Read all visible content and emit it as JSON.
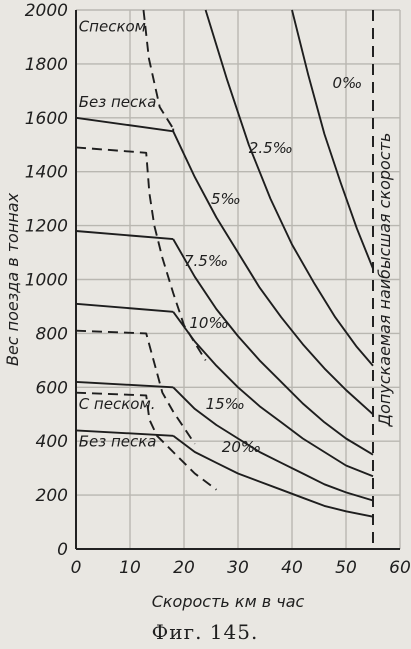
{
  "caption": "Фиг. 145.",
  "chart_data": {
    "type": "line",
    "title": "",
    "xlabel": "Скорость км в час",
    "ylabel": "Вес поезда в тоннах",
    "xlim": [
      0,
      60
    ],
    "ylim": [
      0,
      2000
    ],
    "xticks": [
      "0",
      "10",
      "20",
      "30",
      "40",
      "50",
      "60"
    ],
    "yticks": [
      "0",
      "200",
      "400",
      "600",
      "800",
      "1000",
      "1200",
      "1400",
      "1600",
      "1800",
      "2000"
    ],
    "grid": true,
    "max_speed": 55,
    "max_speed_label": "Допускаемая наибысшая скорость",
    "series": [
      {
        "name": "0‰",
        "style": "solid",
        "x": [
          40,
          43,
          46,
          49,
          52,
          55
        ],
        "y": [
          2000,
          1760,
          1540,
          1360,
          1190,
          1040
        ]
      },
      {
        "name": "2.5‰",
        "style": "solid",
        "x": [
          24,
          28,
          32,
          36,
          40,
          44,
          48,
          52,
          55
        ],
        "y": [
          2000,
          1740,
          1500,
          1300,
          1130,
          990,
          860,
          750,
          680
        ]
      },
      {
        "name": "5‰",
        "style": "solid",
        "x": [
          18,
          18,
          22,
          26,
          30,
          34,
          38,
          42,
          46,
          50,
          55
        ],
        "y": [
          1560,
          1550,
          1380,
          1230,
          1100,
          970,
          860,
          760,
          670,
          590,
          500
        ]
      },
      {
        "name": "7.5‰",
        "style": "solid",
        "x": [
          18,
          22,
          26,
          30,
          34,
          38,
          42,
          46,
          50,
          55
        ],
        "y": [
          1150,
          1010,
          890,
          790,
          700,
          620,
          540,
          470,
          410,
          350
        ]
      },
      {
        "name": "10‰",
        "style": "solid",
        "x": [
          18,
          22,
          26,
          30,
          34,
          38,
          42,
          46,
          50,
          55
        ],
        "y": [
          880,
          770,
          680,
          600,
          530,
          470,
          410,
          360,
          310,
          270
        ]
      },
      {
        "name": "15‰",
        "style": "solid",
        "x": [
          18,
          22,
          26,
          30,
          34,
          38,
          42,
          46,
          50,
          55
        ],
        "y": [
          600,
          520,
          460,
          410,
          360,
          320,
          280,
          240,
          210,
          180
        ]
      },
      {
        "name": "20‰",
        "style": "solid",
        "x": [
          18,
          22,
          26,
          30,
          34,
          38,
          42,
          46,
          50,
          55
        ],
        "y": [
          420,
          360,
          320,
          280,
          250,
          220,
          190,
          160,
          140,
          120
        ]
      },
      {
        "name": "Без песка",
        "style": "solid",
        "x": [
          0,
          18
        ],
        "y": [
          1600,
          1550
        ]
      },
      {
        "name": "",
        "style": "solid",
        "x": [
          0,
          18
        ],
        "y": [
          1180,
          1150
        ]
      },
      {
        "name": "",
        "style": "solid",
        "x": [
          0,
          18
        ],
        "y": [
          910,
          880
        ]
      },
      {
        "name": "",
        "style": "solid",
        "x": [
          0,
          18
        ],
        "y": [
          620,
          600
        ]
      },
      {
        "name": "Без песка",
        "style": "solid",
        "x": [
          0,
          18
        ],
        "y": [
          440,
          420
        ]
      },
      {
        "name": "Спеском",
        "style": "dashed",
        "x": [
          0,
          13,
          13.6,
          14.5,
          16,
          18,
          20,
          24
        ],
        "y": [
          1490,
          1470,
          1320,
          1200,
          1080,
          950,
          830,
          700
        ]
      },
      {
        "name": "С песком.",
        "style": "dashed",
        "x": [
          0,
          13,
          13.6,
          15,
          18,
          22,
          26
        ],
        "y": [
          580,
          570,
          480,
          420,
          360,
          280,
          220
        ]
      },
      {
        "name": "",
        "style": "dashed",
        "x": [
          0,
          13,
          14.5,
          16,
          18,
          22
        ],
        "y": [
          810,
          800,
          690,
          580,
          510,
          390
        ]
      },
      {
        "name": "",
        "style": "dashed",
        "x": [
          12.5,
          13.5,
          15.5,
          18
        ],
        "y": [
          2000,
          1820,
          1640,
          1560
        ]
      }
    ],
    "annotations": [
      {
        "text": "Спеском",
        "x": 0.5,
        "y": 1920
      },
      {
        "text": "Без песка",
        "x": 0.5,
        "y": 1640
      },
      {
        "text": "0‰",
        "x": 47.5,
        "y": 1710
      },
      {
        "text": "2.5‰",
        "x": 32,
        "y": 1470
      },
      {
        "text": "5‰",
        "x": 25,
        "y": 1280
      },
      {
        "text": "7.5‰",
        "x": 20,
        "y": 1050
      },
      {
        "text": "10‰",
        "x": 21,
        "y": 820
      },
      {
        "text": "С песком.",
        "x": 0.5,
        "y": 520
      },
      {
        "text": "15‰",
        "x": 24,
        "y": 520
      },
      {
        "text": "Без песка",
        "x": 0.5,
        "y": 380
      },
      {
        "text": "20‰",
        "x": 27,
        "y": 360
      }
    ]
  }
}
